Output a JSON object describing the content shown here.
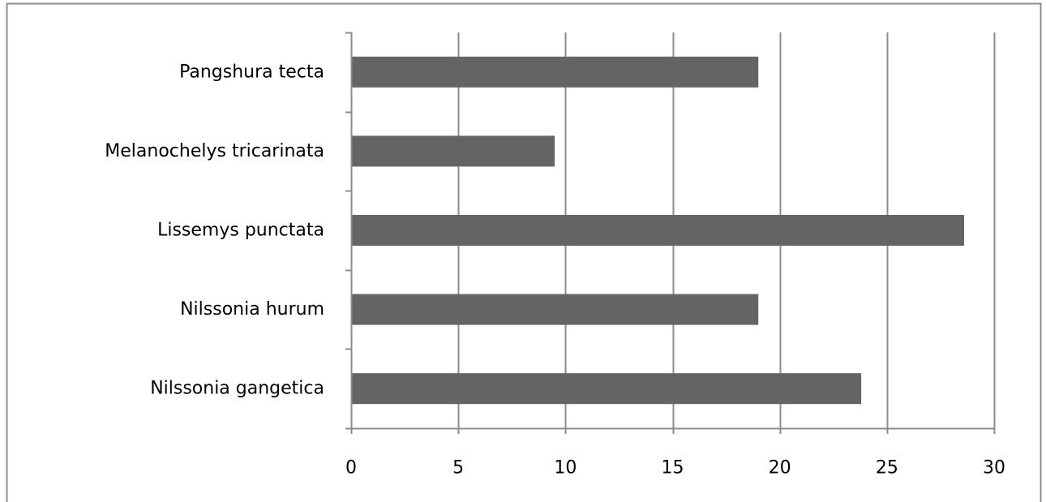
{
  "chart_data": {
    "type": "bar",
    "orientation": "horizontal",
    "title": "",
    "xlabel": "",
    "ylabel": "",
    "categories": [
      "Pangshura tecta",
      "Melanochelys tricarinata",
      "Lissemys punctata",
      "Nilssonia hurum",
      "Nilssonia gangetica"
    ],
    "values": [
      19,
      9.5,
      28.6,
      19,
      23.8
    ],
    "xlim": [
      0,
      30
    ],
    "x_ticks": [
      0,
      5,
      10,
      15,
      20,
      25,
      30
    ],
    "x_tick_labels": [
      "0",
      "5",
      "10",
      "15",
      "20",
      "25",
      "30"
    ],
    "grid": "vertical",
    "legend": "none",
    "bar_color": "#646464",
    "gridline_color": "#8c8c8c",
    "axis_color": "#8c8c8c",
    "border_color": "#8c8c8c"
  }
}
